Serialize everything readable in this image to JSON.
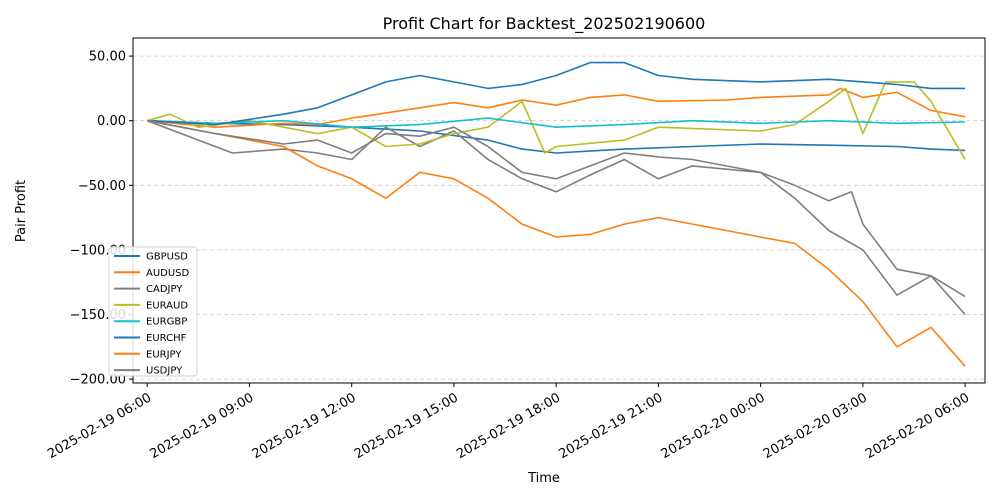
{
  "chart_data": {
    "type": "line",
    "title": "Profit Chart for Backtest_202502190600",
    "xlabel": "Time",
    "ylabel": "Pair Profit",
    "xlim": [
      "2025-02-19 05:35",
      "2025-02-20 06:35"
    ],
    "ylim": [
      -203,
      64
    ],
    "yticks": [
      50,
      0,
      -50,
      -100,
      -150,
      -200
    ],
    "ytick_labels": [
      "50.00",
      "0.00",
      "−50.00",
      "−100.00",
      "−150.00",
      "−200.00"
    ],
    "xticks": [
      "2025-02-19 06:00",
      "2025-02-19 09:00",
      "2025-02-19 12:00",
      "2025-02-19 15:00",
      "2025-02-19 18:00",
      "2025-02-19 21:00",
      "2025-02-20 00:00",
      "2025-02-20 03:00",
      "2025-02-20 06:00"
    ],
    "xtick_labels": [
      "2025-02-19 06:00",
      "2025-02-19 09:00",
      "2025-02-19 12:00",
      "2025-02-19 15:00",
      "2025-02-19 18:00",
      "2025-02-19 21:00",
      "2025-02-20 00:00",
      "2025-02-20 03:00",
      "2025-02-20 06:00"
    ],
    "grid": "horizontal dashed",
    "legend_position": "lower-left",
    "series": [
      {
        "name": "GBPUSD",
        "color": "#1f77b4",
        "points": [
          [
            "2025-02-19 06:00",
            0
          ],
          [
            "2025-02-19 08:00",
            -2
          ],
          [
            "2025-02-19 10:00",
            -3
          ],
          [
            "2025-02-19 12:00",
            -5
          ],
          [
            "2025-02-19 14:00",
            -8
          ],
          [
            "2025-02-19 16:00",
            -15
          ],
          [
            "2025-02-19 17:00",
            -22
          ],
          [
            "2025-02-19 18:00",
            -25
          ],
          [
            "2025-02-19 20:00",
            -22
          ],
          [
            "2025-02-19 22:00",
            -20
          ],
          [
            "2025-02-20 00:00",
            -18
          ],
          [
            "2025-02-20 02:00",
            -19
          ],
          [
            "2025-02-20 04:00",
            -20
          ],
          [
            "2025-02-20 05:00",
            -22
          ],
          [
            "2025-02-20 06:00",
            -23
          ]
        ]
      },
      {
        "name": "AUDUSD",
        "color": "#ff7f0e",
        "points": [
          [
            "2025-02-19 06:00",
            0
          ],
          [
            "2025-02-19 08:00",
            -5
          ],
          [
            "2025-02-19 10:00",
            -2
          ],
          [
            "2025-02-19 11:00",
            -3
          ],
          [
            "2025-02-19 12:00",
            2
          ],
          [
            "2025-02-19 14:00",
            10
          ],
          [
            "2025-02-19 15:00",
            14
          ],
          [
            "2025-02-19 16:00",
            10
          ],
          [
            "2025-02-19 17:00",
            16
          ],
          [
            "2025-02-19 18:00",
            12
          ],
          [
            "2025-02-19 19:00",
            18
          ],
          [
            "2025-02-19 20:00",
            20
          ],
          [
            "2025-02-19 21:00",
            15
          ],
          [
            "2025-02-19 23:00",
            16
          ],
          [
            "2025-02-20 00:00",
            18
          ],
          [
            "2025-02-20 02:00",
            20
          ],
          [
            "2025-02-20 02:20",
            25
          ],
          [
            "2025-02-20 03:00",
            18
          ],
          [
            "2025-02-20 04:00",
            22
          ],
          [
            "2025-02-20 05:00",
            8
          ],
          [
            "2025-02-20 06:00",
            3
          ]
        ]
      },
      {
        "name": "CADJPY",
        "color": "#7f7f7f",
        "points": [
          [
            "2025-02-19 06:00",
            0
          ],
          [
            "2025-02-19 07:00",
            -10
          ],
          [
            "2025-02-19 08:30",
            -25
          ],
          [
            "2025-02-19 10:00",
            -22
          ],
          [
            "2025-02-19 11:00",
            -25
          ],
          [
            "2025-02-19 12:00",
            -30
          ],
          [
            "2025-02-19 13:00",
            -5
          ],
          [
            "2025-02-19 14:00",
            -20
          ],
          [
            "2025-02-19 15:00",
            -8
          ],
          [
            "2025-02-19 16:00",
            -30
          ],
          [
            "2025-02-19 17:00",
            -45
          ],
          [
            "2025-02-19 18:00",
            -55
          ],
          [
            "2025-02-19 19:00",
            -42
          ],
          [
            "2025-02-19 20:00",
            -30
          ],
          [
            "2025-02-19 21:00",
            -45
          ],
          [
            "2025-02-19 22:00",
            -35
          ],
          [
            "2025-02-20 00:00",
            -40
          ],
          [
            "2025-02-20 01:00",
            -50
          ],
          [
            "2025-02-20 02:00",
            -62
          ],
          [
            "2025-02-20 02:40",
            -55
          ],
          [
            "2025-02-20 03:00",
            -80
          ],
          [
            "2025-02-20 04:00",
            -115
          ],
          [
            "2025-02-20 05:00",
            -120
          ],
          [
            "2025-02-20 06:00",
            -136
          ]
        ]
      },
      {
        "name": "EURAUD",
        "color": "#bcbd22",
        "points": [
          [
            "2025-02-19 06:00",
            0
          ],
          [
            "2025-02-19 06:40",
            5
          ],
          [
            "2025-02-19 07:30",
            -5
          ],
          [
            "2025-02-19 09:00",
            0
          ],
          [
            "2025-02-19 11:00",
            -10
          ],
          [
            "2025-02-19 12:00",
            -5
          ],
          [
            "2025-02-19 13:00",
            -20
          ],
          [
            "2025-02-19 14:00",
            -18
          ],
          [
            "2025-02-19 15:00",
            -10
          ],
          [
            "2025-02-19 16:00",
            -5
          ],
          [
            "2025-02-19 17:00",
            15
          ],
          [
            "2025-02-19 17:40",
            -25
          ],
          [
            "2025-02-19 18:00",
            -20
          ],
          [
            "2025-02-19 20:00",
            -15
          ],
          [
            "2025-02-19 21:00",
            -5
          ],
          [
            "2025-02-20 00:00",
            -8
          ],
          [
            "2025-02-20 01:00",
            -3
          ],
          [
            "2025-02-20 02:00",
            15
          ],
          [
            "2025-02-20 02:30",
            25
          ],
          [
            "2025-02-20 03:00",
            -10
          ],
          [
            "2025-02-20 03:40",
            30
          ],
          [
            "2025-02-20 04:30",
            30
          ],
          [
            "2025-02-20 05:00",
            15
          ],
          [
            "2025-02-20 06:00",
            -30
          ]
        ]
      },
      {
        "name": "EURGBP",
        "color": "#17becf",
        "points": [
          [
            "2025-02-19 06:00",
            0
          ],
          [
            "2025-02-19 08:00",
            -2
          ],
          [
            "2025-02-19 10:00",
            0
          ],
          [
            "2025-02-19 12:00",
            -5
          ],
          [
            "2025-02-19 14:00",
            -3
          ],
          [
            "2025-02-19 16:00",
            2
          ],
          [
            "2025-02-19 18:00",
            -5
          ],
          [
            "2025-02-19 20:00",
            -3
          ],
          [
            "2025-02-19 22:00",
            0
          ],
          [
            "2025-02-20 00:00",
            -2
          ],
          [
            "2025-02-20 02:00",
            0
          ],
          [
            "2025-02-20 04:00",
            -2
          ],
          [
            "2025-02-20 06:00",
            -1
          ]
        ]
      },
      {
        "name": "EURCHF",
        "color": "#1f77b4",
        "points": [
          [
            "2025-02-19 06:00",
            0
          ],
          [
            "2025-02-19 08:00",
            -3
          ],
          [
            "2025-02-19 10:00",
            5
          ],
          [
            "2025-02-19 11:00",
            10
          ],
          [
            "2025-02-19 12:00",
            20
          ],
          [
            "2025-02-19 13:00",
            30
          ],
          [
            "2025-02-19 14:00",
            35
          ],
          [
            "2025-02-19 15:00",
            30
          ],
          [
            "2025-02-19 16:00",
            25
          ],
          [
            "2025-02-19 17:00",
            28
          ],
          [
            "2025-02-19 18:00",
            35
          ],
          [
            "2025-02-19 19:00",
            45
          ],
          [
            "2025-02-19 20:00",
            45
          ],
          [
            "2025-02-19 21:00",
            35
          ],
          [
            "2025-02-19 22:00",
            32
          ],
          [
            "2025-02-20 00:00",
            30
          ],
          [
            "2025-02-20 02:00",
            32
          ],
          [
            "2025-02-20 04:00",
            28
          ],
          [
            "2025-02-20 05:00",
            25
          ],
          [
            "2025-02-20 06:00",
            25
          ]
        ]
      },
      {
        "name": "EURJPY",
        "color": "#ff7f0e",
        "points": [
          [
            "2025-02-19 06:00",
            0
          ],
          [
            "2025-02-19 08:00",
            -10
          ],
          [
            "2025-02-19 10:00",
            -20
          ],
          [
            "2025-02-19 11:00",
            -35
          ],
          [
            "2025-02-19 12:00",
            -45
          ],
          [
            "2025-02-19 13:00",
            -60
          ],
          [
            "2025-02-19 14:00",
            -40
          ],
          [
            "2025-02-19 15:00",
            -45
          ],
          [
            "2025-02-19 16:00",
            -60
          ],
          [
            "2025-02-19 17:00",
            -80
          ],
          [
            "2025-02-19 18:00",
            -90
          ],
          [
            "2025-02-19 19:00",
            -88
          ],
          [
            "2025-02-19 20:00",
            -80
          ],
          [
            "2025-02-19 21:00",
            -75
          ],
          [
            "2025-02-19 22:00",
            -80
          ],
          [
            "2025-02-20 00:00",
            -90
          ],
          [
            "2025-02-20 01:00",
            -95
          ],
          [
            "2025-02-20 02:00",
            -115
          ],
          [
            "2025-02-20 03:00",
            -140
          ],
          [
            "2025-02-20 04:00",
            -175
          ],
          [
            "2025-02-20 05:00",
            -160
          ],
          [
            "2025-02-20 06:00",
            -190
          ]
        ]
      },
      {
        "name": "USDJPY",
        "color": "#7f7f7f",
        "points": [
          [
            "2025-02-19 06:00",
            0
          ],
          [
            "2025-02-19 08:00",
            -10
          ],
          [
            "2025-02-19 10:00",
            -18
          ],
          [
            "2025-02-19 11:00",
            -15
          ],
          [
            "2025-02-19 12:00",
            -25
          ],
          [
            "2025-02-19 13:00",
            -10
          ],
          [
            "2025-02-19 14:00",
            -12
          ],
          [
            "2025-02-19 15:00",
            -5
          ],
          [
            "2025-02-19 16:00",
            -20
          ],
          [
            "2025-02-19 17:00",
            -40
          ],
          [
            "2025-02-19 18:00",
            -45
          ],
          [
            "2025-02-19 19:00",
            -35
          ],
          [
            "2025-02-19 20:00",
            -25
          ],
          [
            "2025-02-19 21:00",
            -28
          ],
          [
            "2025-02-19 22:00",
            -30
          ],
          [
            "2025-02-20 00:00",
            -40
          ],
          [
            "2025-02-20 01:00",
            -60
          ],
          [
            "2025-02-20 02:00",
            -85
          ],
          [
            "2025-02-20 03:00",
            -100
          ],
          [
            "2025-02-20 04:00",
            -135
          ],
          [
            "2025-02-20 05:00",
            -120
          ],
          [
            "2025-02-20 06:00",
            -150
          ]
        ]
      }
    ]
  }
}
